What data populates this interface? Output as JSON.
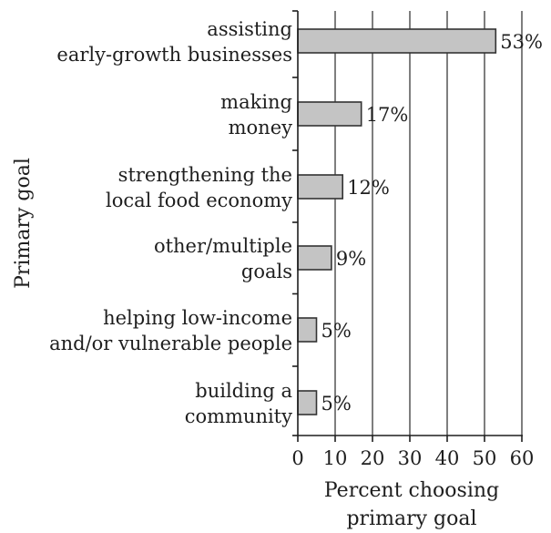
{
  "chart_data": {
    "type": "bar",
    "orientation": "horizontal",
    "categories": [
      [
        "assisting",
        "early-growth businesses"
      ],
      [
        "making",
        "money"
      ],
      [
        "strengthening the",
        "local food economy"
      ],
      [
        "other/multiple",
        "goals"
      ],
      [
        "helping low-income",
        "and/or vulnerable people"
      ],
      [
        "building a",
        "community"
      ]
    ],
    "values": [
      53,
      17,
      12,
      9,
      5,
      5
    ],
    "data_labels": [
      "53%",
      "17%",
      "12%",
      "9%",
      "5%",
      "5%"
    ],
    "xticks": [
      "0",
      "10",
      "20",
      "30",
      "40",
      "50",
      "60"
    ],
    "xlim": [
      0,
      60
    ],
    "xlabel": [
      "Percent choosing",
      "primary goal"
    ],
    "ylabel": "Primary goal",
    "grid": "vertical",
    "colors": {
      "bar_fill": "#c4c4c4",
      "bar_stroke": "#333333",
      "text": "#1e1e1e"
    }
  }
}
